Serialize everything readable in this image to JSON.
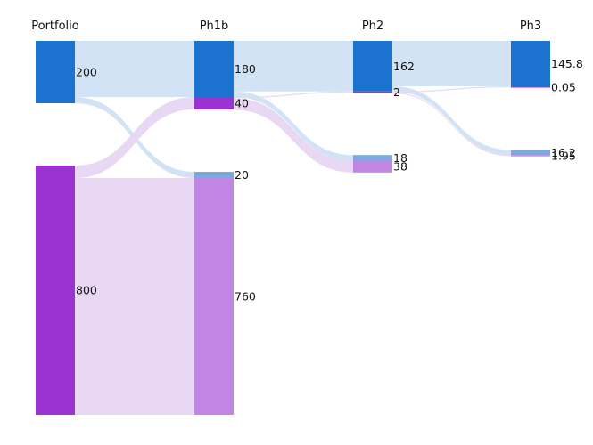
{
  "chart_data": {
    "type": "sankey",
    "title": "",
    "stages": [
      "Portfolio",
      "Ph1b",
      "Ph2",
      "Ph3"
    ],
    "colors": {
      "node_blue": "#1c73cf",
      "node_blue_light": "#79aae0",
      "node_purple": "#9a33cf",
      "node_purple_light": "#c186e4",
      "link_blue": "#cfe1f3",
      "link_purple": "#e8d6f3"
    },
    "nodes": [
      {
        "id": "pf_blue",
        "stage": 0,
        "value": 200,
        "label": "200",
        "color": "node_blue"
      },
      {
        "id": "pf_purple",
        "stage": 0,
        "value": 800,
        "label": "800",
        "color": "node_purple"
      },
      {
        "id": "p1_blue",
        "stage": 1,
        "value": 180,
        "label": "180",
        "color": "node_blue"
      },
      {
        "id": "p1_purple",
        "stage": 1,
        "value": 40,
        "label": "40",
        "color": "node_purple"
      },
      {
        "id": "p1_lblue",
        "stage": 1,
        "value": 20,
        "label": "20",
        "color": "node_blue_light"
      },
      {
        "id": "p1_lpurp",
        "stage": 1,
        "value": 760,
        "label": "760",
        "color": "node_purple_light"
      },
      {
        "id": "p2_blue",
        "stage": 2,
        "value": 162,
        "label": "162",
        "color": "node_blue"
      },
      {
        "id": "p2_purple",
        "stage": 2,
        "value": 2,
        "label": "2",
        "color": "node_purple"
      },
      {
        "id": "p2_lblue",
        "stage": 2,
        "value": 18,
        "label": "18",
        "color": "node_blue_light"
      },
      {
        "id": "p2_lpurp",
        "stage": 2,
        "value": 38,
        "label": "38",
        "color": "node_purple_light"
      },
      {
        "id": "p3_blue",
        "stage": 3,
        "value": 145.8,
        "label": "145.8",
        "color": "node_blue"
      },
      {
        "id": "p3_purple",
        "stage": 3,
        "value": 0.05,
        "label": "0.05",
        "color": "node_purple"
      },
      {
        "id": "p3_lblue",
        "stage": 3,
        "value": 16.2,
        "label": "16.2",
        "color": "node_blue_light"
      },
      {
        "id": "p3_lpurp",
        "stage": 3,
        "value": 1.95,
        "label": "1.95",
        "color": "node_purple_light"
      }
    ],
    "links": [
      {
        "source": "pf_blue",
        "target": "p1_blue",
        "value": 180,
        "color": "link_blue"
      },
      {
        "source": "pf_blue",
        "target": "p1_lblue",
        "value": 20,
        "color": "link_blue"
      },
      {
        "source": "pf_purple",
        "target": "p1_purple",
        "value": 40,
        "color": "link_purple"
      },
      {
        "source": "pf_purple",
        "target": "p1_lpurp",
        "value": 760,
        "color": "link_purple"
      },
      {
        "source": "p1_blue",
        "target": "p2_blue",
        "value": 162,
        "color": "link_blue"
      },
      {
        "source": "p1_blue",
        "target": "p2_lblue",
        "value": 18,
        "color": "link_blue"
      },
      {
        "source": "p1_purple",
        "target": "p2_purple",
        "value": 2,
        "color": "link_purple"
      },
      {
        "source": "p1_purple",
        "target": "p2_lpurp",
        "value": 38,
        "color": "link_purple"
      },
      {
        "source": "p2_blue",
        "target": "p3_blue",
        "value": 145.8,
        "color": "link_blue"
      },
      {
        "source": "p2_blue",
        "target": "p3_lblue",
        "value": 16.2,
        "color": "link_blue"
      },
      {
        "source": "p2_purple",
        "target": "p3_purple",
        "value": 0.05,
        "color": "link_purple"
      },
      {
        "source": "p2_purple",
        "target": "p3_lpurp",
        "value": 1.95,
        "color": "link_purple"
      }
    ]
  }
}
